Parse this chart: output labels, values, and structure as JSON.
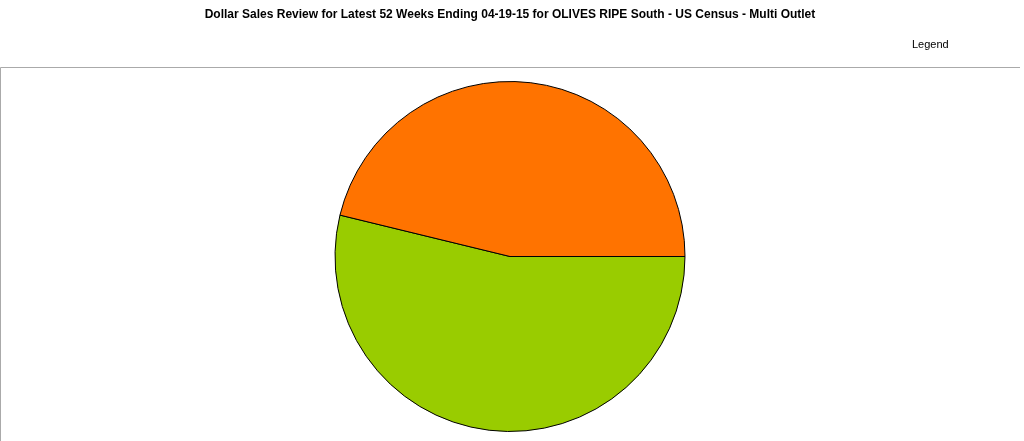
{
  "chart_data": {
    "type": "pie",
    "title": "Dollar Sales Review for Latest 52 Weeks Ending 04-19-15 for OLIVES RIPE South - US Census - Multi Outlet",
    "categories": [
      null,
      null
    ],
    "values": [
      53.8,
      46.2
    ],
    "colors": [
      "#99cc00",
      "#ff7300"
    ],
    "annotations": [
      "Legend"
    ]
  }
}
